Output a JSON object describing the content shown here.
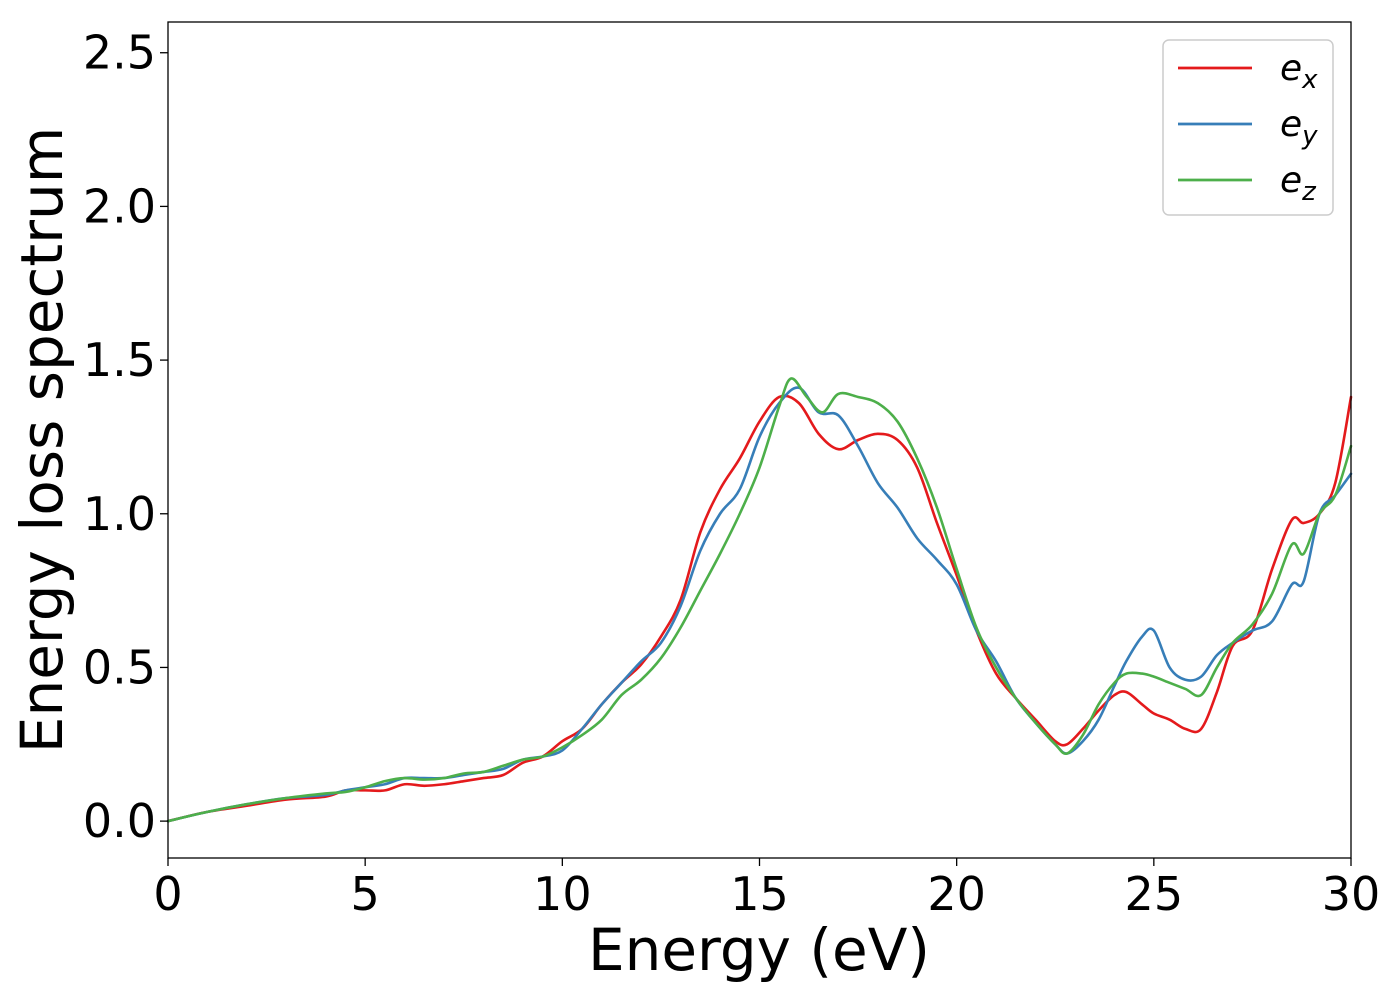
{
  "chart_data": {
    "type": "line",
    "xlabel": "Energy (eV)",
    "ylabel": "Energy loss spectrum",
    "xlim": [
      0,
      30
    ],
    "ylim": [
      -0.12,
      2.6
    ],
    "xticks": [
      0,
      5,
      10,
      15,
      20,
      25,
      30
    ],
    "xtick_labels": [
      "0",
      "5",
      "10",
      "15",
      "20",
      "25",
      "30"
    ],
    "yticks": [
      0.0,
      0.5,
      1.0,
      1.5,
      2.0,
      2.5
    ],
    "ytick_labels": [
      "0.0",
      "0.5",
      "1.0",
      "1.5",
      "2.0",
      "2.5"
    ],
    "grid": false,
    "legend_position": "top-right",
    "series": [
      {
        "name": "e_x",
        "name_base": "e",
        "name_sub": "x",
        "color": "#e41a1c",
        "x": [
          0,
          1,
          2,
          3,
          4,
          4.5,
          5,
          5.5,
          6,
          6.5,
          7,
          7.5,
          8,
          8.5,
          9,
          9.5,
          10,
          10.5,
          11,
          11.5,
          12,
          12.5,
          13,
          13.5,
          14,
          14.5,
          15,
          15.5,
          16,
          16.5,
          17,
          17.5,
          18,
          18.5,
          19,
          19.5,
          20,
          20.5,
          21,
          21.5,
          22,
          22.5,
          22.8,
          23.2,
          23.6,
          24,
          24.3,
          24.7,
          25,
          25.4,
          25.8,
          26.2,
          26.6,
          27,
          27.5,
          28,
          28.5,
          28.8,
          29.2,
          29.6,
          30
        ],
        "y": [
          0,
          0.03,
          0.05,
          0.07,
          0.08,
          0.1,
          0.1,
          0.1,
          0.12,
          0.115,
          0.12,
          0.13,
          0.14,
          0.15,
          0.19,
          0.21,
          0.26,
          0.3,
          0.38,
          0.45,
          0.51,
          0.6,
          0.72,
          0.94,
          1.08,
          1.18,
          1.3,
          1.38,
          1.36,
          1.26,
          1.21,
          1.24,
          1.26,
          1.24,
          1.15,
          0.97,
          0.8,
          0.62,
          0.48,
          0.4,
          0.33,
          0.26,
          0.25,
          0.3,
          0.36,
          0.41,
          0.42,
          0.38,
          0.35,
          0.33,
          0.3,
          0.3,
          0.42,
          0.57,
          0.62,
          0.82,
          0.98,
          0.97,
          1.0,
          1.1,
          1.38
        ]
      },
      {
        "name": "e_y",
        "name_base": "e",
        "name_sub": "y",
        "color": "#377eb8",
        "x": [
          0,
          1,
          2,
          3,
          4,
          4.5,
          5,
          5.5,
          6,
          6.5,
          7,
          7.5,
          8,
          8.5,
          9,
          9.5,
          10,
          10.5,
          11,
          11.5,
          12,
          12.5,
          13,
          13.5,
          14,
          14.5,
          15,
          15.5,
          16,
          16.5,
          17,
          17.5,
          18,
          18.5,
          19,
          19.5,
          20,
          20.5,
          21,
          21.5,
          22,
          22.5,
          22.8,
          23.2,
          23.6,
          24,
          24.3,
          24.7,
          25,
          25.4,
          25.8,
          26.2,
          26.6,
          27,
          27.5,
          28,
          28.5,
          28.8,
          29.2,
          29.6,
          30
        ],
        "y": [
          0,
          0.03,
          0.055,
          0.075,
          0.085,
          0.1,
          0.11,
          0.12,
          0.14,
          0.14,
          0.14,
          0.15,
          0.16,
          0.17,
          0.2,
          0.21,
          0.23,
          0.3,
          0.38,
          0.45,
          0.52,
          0.58,
          0.7,
          0.88,
          1.0,
          1.08,
          1.25,
          1.36,
          1.41,
          1.33,
          1.32,
          1.22,
          1.1,
          1.02,
          0.92,
          0.85,
          0.77,
          0.62,
          0.52,
          0.4,
          0.32,
          0.25,
          0.22,
          0.26,
          0.33,
          0.44,
          0.52,
          0.6,
          0.62,
          0.5,
          0.46,
          0.47,
          0.54,
          0.58,
          0.62,
          0.65,
          0.77,
          0.78,
          1.0,
          1.06,
          1.13
        ]
      },
      {
        "name": "e_z",
        "name_base": "e",
        "name_sub": "z",
        "color": "#4daf4a",
        "x": [
          0,
          1,
          2,
          3,
          4,
          4.5,
          5,
          5.5,
          6,
          6.5,
          7,
          7.5,
          8,
          8.5,
          9,
          9.5,
          10,
          10.5,
          11,
          11.5,
          12,
          12.5,
          13,
          13.5,
          14,
          14.5,
          15,
          15.5,
          15.8,
          16.2,
          16.6,
          17,
          17.5,
          18,
          18.5,
          19,
          19.5,
          20,
          20.5,
          21,
          21.5,
          22,
          22.5,
          22.8,
          23.2,
          23.6,
          24,
          24.3,
          24.7,
          25,
          25.4,
          25.8,
          26.2,
          26.6,
          27,
          27.5,
          28,
          28.5,
          28.8,
          29.2,
          29.6,
          30
        ],
        "y": [
          0,
          0.03,
          0.055,
          0.075,
          0.09,
          0.095,
          0.11,
          0.13,
          0.14,
          0.135,
          0.14,
          0.155,
          0.16,
          0.18,
          0.2,
          0.21,
          0.24,
          0.28,
          0.33,
          0.41,
          0.46,
          0.53,
          0.63,
          0.75,
          0.87,
          1.0,
          1.15,
          1.35,
          1.44,
          1.38,
          1.33,
          1.39,
          1.38,
          1.36,
          1.3,
          1.18,
          1.02,
          0.82,
          0.63,
          0.5,
          0.4,
          0.32,
          0.25,
          0.22,
          0.28,
          0.38,
          0.45,
          0.48,
          0.48,
          0.47,
          0.45,
          0.43,
          0.41,
          0.5,
          0.58,
          0.64,
          0.74,
          0.9,
          0.87,
          1.0,
          1.06,
          1.22
        ]
      }
    ]
  }
}
